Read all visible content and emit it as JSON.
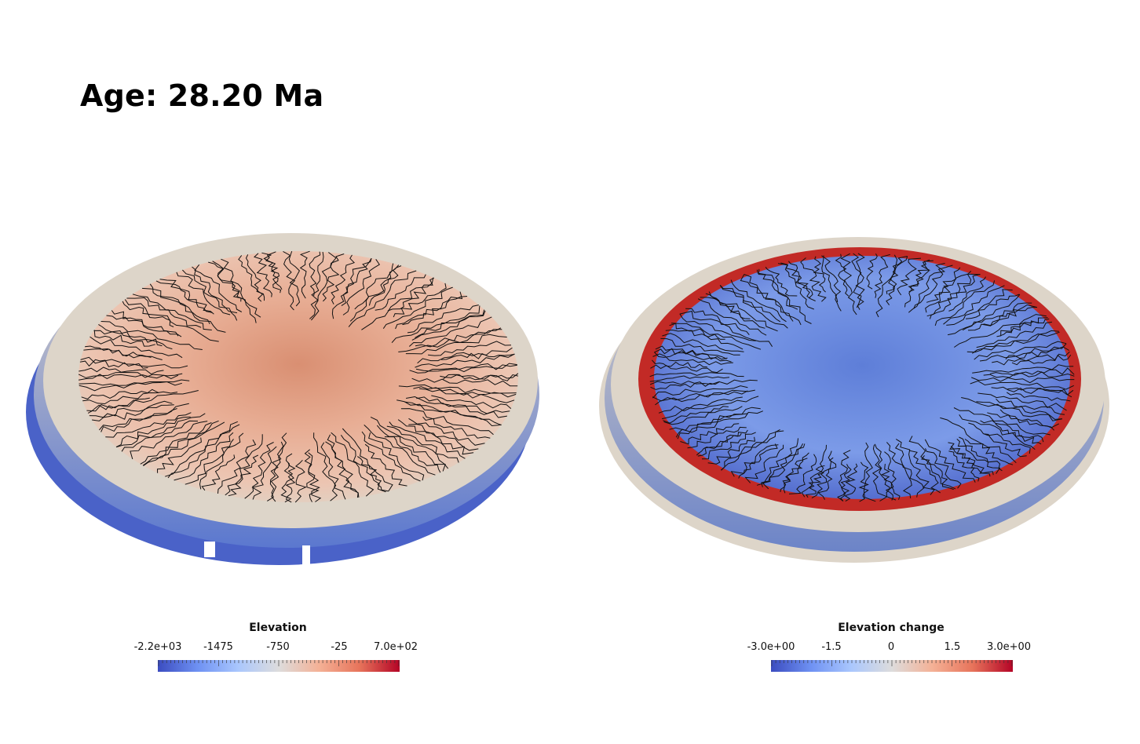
{
  "age_label": "Age: 28.20 Ma",
  "colorbars": [
    {
      "title": "Elevation",
      "ticks": [
        "-2.2e+03",
        "-1475",
        "-750",
        "-25",
        "7.0e+02"
      ],
      "palette": [
        "#3b4cc0",
        "#6f92f3",
        "#aac7fd",
        "#dddcdc",
        "#f4b196",
        "#e7745b",
        "#b40426"
      ]
    },
    {
      "title": "Elevation change",
      "ticks": [
        "-3.0e+00",
        "-1.5",
        "0",
        "1.5",
        "3.0e+00"
      ],
      "palette": [
        "#3b4cc0",
        "#6f92f3",
        "#aac7fd",
        "#dddcdc",
        "#f4b196",
        "#e7745b",
        "#b40426"
      ]
    }
  ],
  "views": {
    "left": {
      "field": "Elevation",
      "surface_color": "#e8b59b",
      "rim_color": "#ddd5c9",
      "base_color": "#4a62c8"
    },
    "right": {
      "field": "Elevation change",
      "surface_color": "#4a62c8",
      "rim_color": "#ddd5c9",
      "ring_color": "#c22a26",
      "base_color": "#ddd5c9"
    }
  }
}
